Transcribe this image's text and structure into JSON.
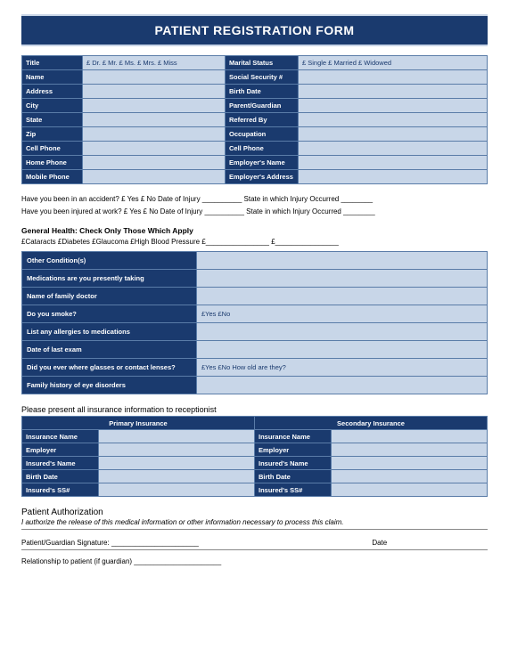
{
  "title": "PATIENT REGISTRATION FORM",
  "rowsLeft": [
    "Title",
    "Name",
    "Address",
    "City",
    "State",
    "Zip",
    "Cell Phone",
    "Home Phone",
    "Mobile Phone"
  ],
  "rowsRight": [
    "Marital Status",
    "Social Security #",
    "Birth Date",
    "Parent/Guardian",
    "Referred By",
    "Occupation",
    "Cell Phone",
    "Employer's Name",
    "Employer's Address"
  ],
  "titleOptions": "£ Dr.   £ Mr.   £ Ms.   £ Mrs.   £ Miss",
  "maritalOptions": "£ Single   £ Married   £ Widowed",
  "q1": "Have you been in an accident?        £ Yes   £ No  Date of Injury __________  State in which Injury Occurred ________",
  "q2": "Have you been injured at work?       £ Yes   £ No  Date of Injury __________  State in which Injury Occurred ________",
  "healthHdr": "General Health: Check Only Those Which Apply",
  "healthOpts": "£Cataracts  £Diabetes  £Glaucoma  £High Blood Pressure   £________________   £________________",
  "healthRows": [
    {
      "l": "Other Condition(s)",
      "v": ""
    },
    {
      "l": "Medications are you presently taking",
      "v": ""
    },
    {
      "l": "Name of family doctor",
      "v": ""
    },
    {
      "l": "Do you smoke?",
      "v": "£Yes   £No"
    },
    {
      "l": "List any allergies to medications",
      "v": ""
    },
    {
      "l": "Date of last exam",
      "v": ""
    },
    {
      "l": "Did you ever where glasses or contact lenses?",
      "v": "£Yes   £No  How old are they?"
    },
    {
      "l": "Family history of eye disorders",
      "v": ""
    }
  ],
  "insHdr": "Please present all insurance information to receptionist",
  "insPrimary": "Primary Insurance",
  "insSecondary": "Secondary Insurance",
  "insRows": [
    "Insurance Name",
    "Employer",
    "Insured's Name",
    "Birth Date",
    "Insured's SS#"
  ],
  "authHdr": "Patient Authorization",
  "authTxt": "I authorize the release of this medical information or other information necessary to process this claim.",
  "sig": "Patient/Guardian Signature: ______________________",
  "date": "Date",
  "rel": "Relationship to patient (if guardian) ______________________"
}
